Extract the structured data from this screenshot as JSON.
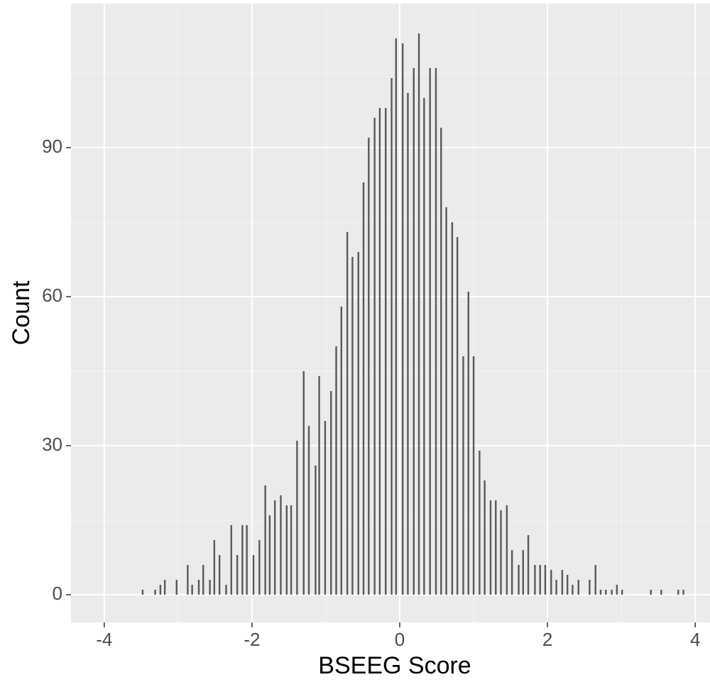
{
  "chart_data": {
    "type": "bar",
    "xlabel": "BSEEG Score",
    "ylabel": "Count",
    "x": [
      -3.48,
      -3.31,
      -3.24,
      -3.18,
      -3.02,
      -2.87,
      -2.81,
      -2.72,
      -2.66,
      -2.57,
      -2.51,
      -2.44,
      -2.35,
      -2.28,
      -2.2,
      -2.13,
      -2.07,
      -1.98,
      -1.9,
      -1.82,
      -1.76,
      -1.69,
      -1.61,
      -1.53,
      -1.47,
      -1.39,
      -1.3,
      -1.23,
      -1.14,
      -1.09,
      -1.01,
      -0.93,
      -0.86,
      -0.79,
      -0.71,
      -0.64,
      -0.56,
      -0.49,
      -0.42,
      -0.34,
      -0.27,
      -0.19,
      -0.11,
      -0.05,
      0.04,
      0.11,
      0.19,
      0.26,
      0.33,
      0.41,
      0.49,
      0.56,
      0.63,
      0.71,
      0.78,
      0.86,
      0.93,
      1.0,
      1.08,
      1.15,
      1.23,
      1.3,
      1.37,
      1.45,
      1.52,
      1.61,
      1.67,
      1.74,
      1.83,
      1.9,
      1.97,
      2.05,
      2.12,
      2.2,
      2.27,
      2.34,
      2.42,
      2.57,
      2.65,
      2.72,
      2.79,
      2.87,
      2.94,
      3.01,
      3.4,
      3.54,
      3.77,
      3.84
    ],
    "values": [
      1,
      1,
      2,
      3,
      3,
      6,
      2,
      3,
      6,
      3,
      11,
      8,
      2,
      14,
      8,
      14,
      14,
      8,
      11,
      22,
      16,
      19,
      20,
      18,
      18,
      31,
      45,
      34,
      26,
      44,
      35,
      41,
      50,
      58,
      73,
      68,
      69,
      83,
      92,
      96,
      98,
      98,
      104,
      112,
      111,
      101,
      106,
      113,
      100,
      106,
      106,
      94,
      78,
      75,
      72,
      48,
      61,
      48,
      29,
      23,
      19,
      19,
      17,
      18,
      9,
      6,
      9,
      12,
      6,
      6,
      6,
      5,
      3,
      5,
      4,
      2,
      3,
      3,
      6,
      1,
      1,
      1,
      2,
      1,
      1,
      1,
      1,
      1
    ],
    "color": "#595959",
    "xlim": [
      -4.45,
      4.2
    ],
    "xticks": [
      -4,
      -2,
      0,
      2,
      4
    ],
    "ylim": [
      -5.57,
      119
    ],
    "yticks": [
      0,
      30,
      60,
      90
    ],
    "grid": true
  }
}
